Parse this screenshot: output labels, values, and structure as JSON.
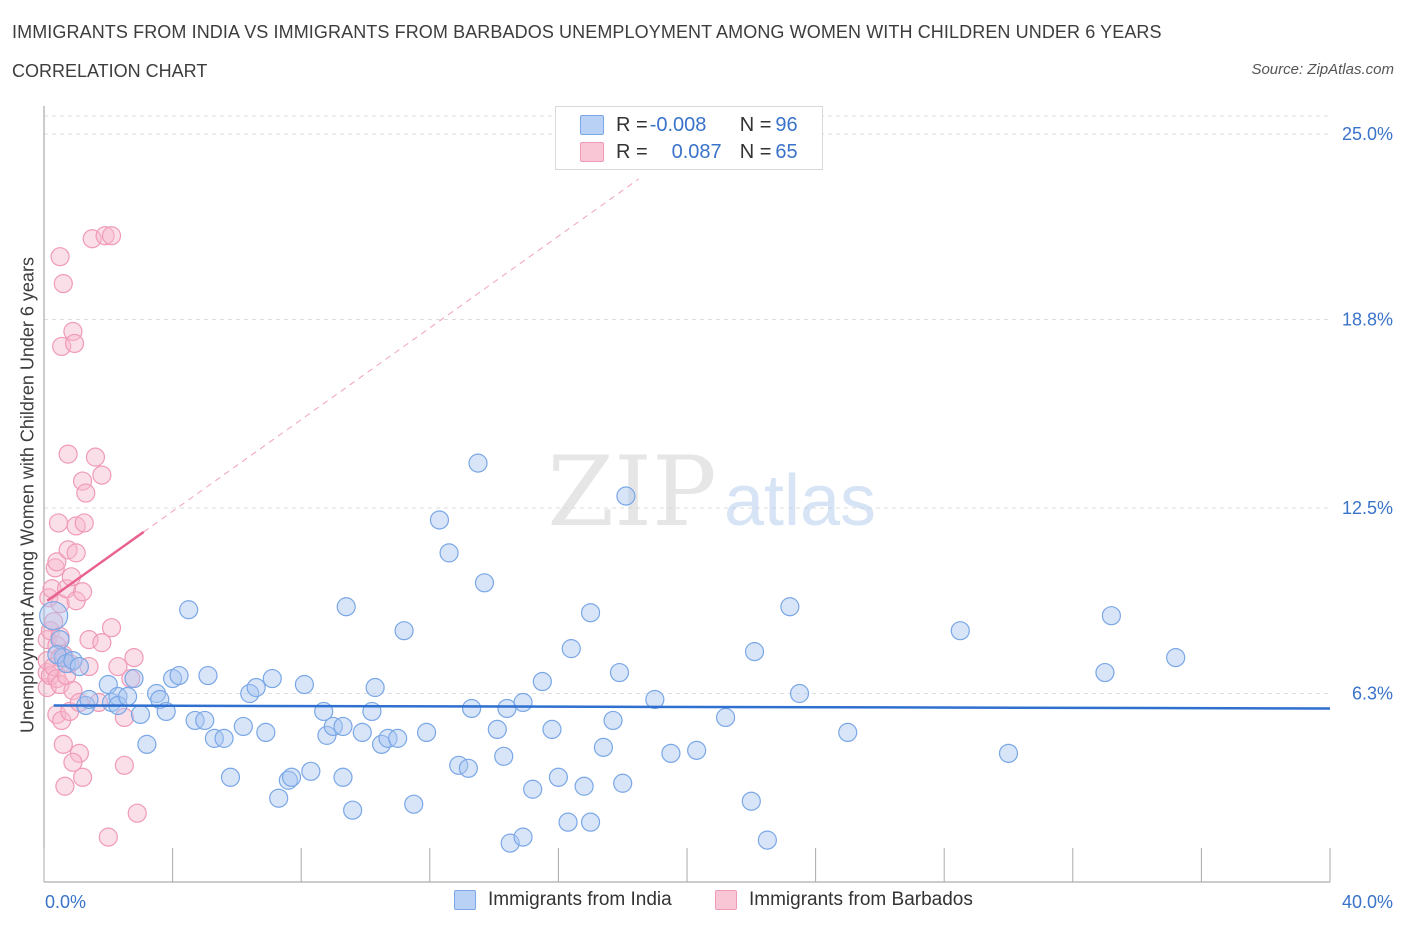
{
  "title": "IMMIGRANTS FROM INDIA VS IMMIGRANTS FROM BARBADOS UNEMPLOYMENT AMONG WOMEN WITH CHILDREN UNDER 6 YEARS",
  "subtitle": "CORRELATION CHART",
  "source": "Source: ZipAtlas.com",
  "watermark": {
    "zip": "ZIP",
    "atlas": "atlas"
  },
  "legend_top": {
    "india": {
      "r_label": "R = ",
      "r_value": "-0.008",
      "n_label": "N = ",
      "n_value": "96"
    },
    "barbados": {
      "r_label": "R = ",
      "r_value": "0.087",
      "n_label": "N = ",
      "n_value": "65"
    }
  },
  "chart_data": {
    "type": "scatter",
    "title": "IMMIGRANTS FROM INDIA VS IMMIGRANTS FROM BARBADOS UNEMPLOYMENT AMONG WOMEN WITH CHILDREN UNDER 6 YEARS",
    "xlabel": "",
    "ylabel": "Unemployment Among Women with Children Under 6 years",
    "xlim": [
      0,
      40
    ],
    "ylim": [
      0,
      25
    ],
    "x_tick_labels": [
      "0.0%",
      "40.0%"
    ],
    "y_tick_values": [
      6.3,
      12.5,
      18.8,
      25.0
    ],
    "y_tick_labels": [
      "6.3%",
      "12.5%",
      "18.8%",
      "25.0%"
    ],
    "grid": true,
    "colors": {
      "india": "#7aa7e6",
      "barbados": "#f09ab6",
      "india_line": "#2f6fcf",
      "barbados_line": "#e8628f",
      "tick_label": "#3a73c9"
    },
    "series": [
      {
        "name": "Immigrants from India",
        "color": "#7aa7e6",
        "trend": {
          "x": [
            0.3,
            40
          ],
          "y": [
            5.9,
            5.8
          ]
        },
        "points": [
          [
            0.5,
            8.1
          ],
          [
            0.6,
            7.5
          ],
          [
            0.4,
            7.6
          ],
          [
            0.7,
            7.3
          ],
          [
            0.9,
            7.4
          ],
          [
            1.1,
            7.2
          ],
          [
            1.3,
            5.9
          ],
          [
            1.4,
            6.1
          ],
          [
            2.0,
            6.6
          ],
          [
            2.1,
            6.0
          ],
          [
            2.3,
            6.2
          ],
          [
            2.3,
            5.9
          ],
          [
            2.6,
            6.2
          ],
          [
            2.8,
            6.8
          ],
          [
            3.0,
            5.6
          ],
          [
            3.2,
            4.6
          ],
          [
            3.5,
            6.3
          ],
          [
            3.6,
            6.1
          ],
          [
            3.8,
            5.7
          ],
          [
            4.0,
            6.8
          ],
          [
            4.2,
            6.9
          ],
          [
            4.5,
            9.1
          ],
          [
            4.7,
            5.4
          ],
          [
            5.0,
            5.4
          ],
          [
            5.1,
            6.9
          ],
          [
            5.3,
            4.8
          ],
          [
            5.6,
            4.8
          ],
          [
            5.8,
            3.5
          ],
          [
            6.2,
            5.2
          ],
          [
            6.4,
            6.3
          ],
          [
            6.6,
            6.5
          ],
          [
            6.9,
            5.0
          ],
          [
            7.1,
            6.8
          ],
          [
            7.3,
            2.8
          ],
          [
            7.6,
            3.4
          ],
          [
            7.7,
            3.5
          ],
          [
            8.1,
            6.6
          ],
          [
            8.3,
            3.7
          ],
          [
            8.7,
            5.7
          ],
          [
            8.8,
            4.9
          ],
          [
            9.0,
            5.2
          ],
          [
            9.3,
            5.2
          ],
          [
            9.3,
            3.5
          ],
          [
            9.4,
            9.2
          ],
          [
            9.6,
            2.4
          ],
          [
            9.9,
            5.0
          ],
          [
            10.2,
            5.7
          ],
          [
            10.3,
            6.5
          ],
          [
            10.5,
            4.6
          ],
          [
            10.7,
            4.8
          ],
          [
            11.0,
            4.8
          ],
          [
            11.2,
            8.4
          ],
          [
            11.5,
            2.6
          ],
          [
            11.9,
            5.0
          ],
          [
            12.3,
            12.1
          ],
          [
            12.6,
            11.0
          ],
          [
            12.9,
            3.9
          ],
          [
            13.2,
            3.8
          ],
          [
            13.3,
            5.8
          ],
          [
            13.5,
            14.0
          ],
          [
            13.7,
            10.0
          ],
          [
            14.1,
            5.1
          ],
          [
            14.3,
            4.2
          ],
          [
            14.4,
            5.8
          ],
          [
            14.5,
            1.3
          ],
          [
            14.9,
            6.0
          ],
          [
            14.9,
            1.5
          ],
          [
            15.2,
            3.1
          ],
          [
            15.5,
            6.7
          ],
          [
            15.8,
            5.1
          ],
          [
            16.0,
            3.5
          ],
          [
            16.3,
            2.0
          ],
          [
            16.4,
            7.8
          ],
          [
            16.8,
            3.2
          ],
          [
            17.0,
            9.0
          ],
          [
            17.0,
            2.0
          ],
          [
            17.4,
            4.5
          ],
          [
            17.7,
            5.4
          ],
          [
            17.9,
            7.0
          ],
          [
            18.0,
            3.3
          ],
          [
            18.1,
            12.9
          ],
          [
            19.0,
            6.1
          ],
          [
            19.5,
            4.3
          ],
          [
            20.3,
            4.4
          ],
          [
            21.2,
            5.5
          ],
          [
            22.0,
            2.7
          ],
          [
            22.1,
            7.7
          ],
          [
            22.5,
            1.4
          ],
          [
            23.2,
            9.2
          ],
          [
            23.5,
            6.3
          ],
          [
            25.0,
            5.0
          ],
          [
            28.5,
            8.4
          ],
          [
            30.0,
            4.3
          ],
          [
            33.0,
            7.0
          ],
          [
            33.2,
            8.9
          ],
          [
            35.2,
            7.5
          ]
        ]
      },
      {
        "name": "Immigrants from Barbados",
        "color": "#f09ab6",
        "trend": {
          "x": [
            0.1,
            3.1
          ],
          "y": [
            9.4,
            11.7
          ]
        },
        "trend_extended": {
          "x": [
            3.1,
            18.5
          ],
          "y": [
            11.7,
            23.5
          ]
        },
        "points": [
          [
            0.1,
            6.5
          ],
          [
            0.1,
            7.0
          ],
          [
            0.1,
            7.4
          ],
          [
            0.1,
            8.1
          ],
          [
            0.15,
            9.5
          ],
          [
            0.2,
            8.4
          ],
          [
            0.2,
            6.9
          ],
          [
            0.25,
            9.8
          ],
          [
            0.3,
            7.2
          ],
          [
            0.3,
            8.7
          ],
          [
            0.35,
            10.5
          ],
          [
            0.4,
            6.8
          ],
          [
            0.4,
            7.9
          ],
          [
            0.4,
            10.7
          ],
          [
            0.4,
            5.6
          ],
          [
            0.45,
            12.0
          ],
          [
            0.5,
            6.6
          ],
          [
            0.5,
            7.5
          ],
          [
            0.5,
            8.2
          ],
          [
            0.5,
            9.3
          ],
          [
            0.5,
            20.9
          ],
          [
            0.55,
            5.4
          ],
          [
            0.55,
            17.9
          ],
          [
            0.6,
            7.6
          ],
          [
            0.6,
            4.6
          ],
          [
            0.6,
            20.0
          ],
          [
            0.65,
            3.2
          ],
          [
            0.7,
            6.9
          ],
          [
            0.7,
            9.8
          ],
          [
            0.75,
            11.1
          ],
          [
            0.75,
            14.3
          ],
          [
            0.8,
            5.7
          ],
          [
            0.8,
            7.3
          ],
          [
            0.85,
            10.2
          ],
          [
            0.9,
            18.4
          ],
          [
            0.9,
            6.4
          ],
          [
            0.95,
            18.0
          ],
          [
            1.0,
            11.9
          ],
          [
            1.0,
            11.0
          ],
          [
            1.0,
            9.4
          ],
          [
            1.1,
            6.0
          ],
          [
            1.1,
            4.3
          ],
          [
            1.2,
            9.7
          ],
          [
            1.2,
            13.4
          ],
          [
            1.2,
            3.5
          ],
          [
            1.25,
            12.0
          ],
          [
            1.3,
            13.0
          ],
          [
            1.4,
            7.2
          ],
          [
            1.4,
            8.1
          ],
          [
            1.5,
            21.5
          ],
          [
            1.6,
            14.2
          ],
          [
            1.7,
            6.0
          ],
          [
            1.8,
            13.6
          ],
          [
            1.8,
            8.0
          ],
          [
            1.9,
            21.6
          ],
          [
            2.0,
            1.5
          ],
          [
            2.1,
            21.6
          ],
          [
            2.1,
            8.5
          ],
          [
            2.3,
            7.2
          ],
          [
            2.5,
            5.5
          ],
          [
            2.5,
            3.9
          ],
          [
            2.7,
            6.8
          ],
          [
            2.8,
            7.5
          ],
          [
            2.9,
            2.3
          ],
          [
            0.9,
            4.0
          ]
        ]
      }
    ]
  },
  "legend_bottom": {
    "india": "Immigrants from India",
    "barbados": "Immigrants from Barbados"
  }
}
